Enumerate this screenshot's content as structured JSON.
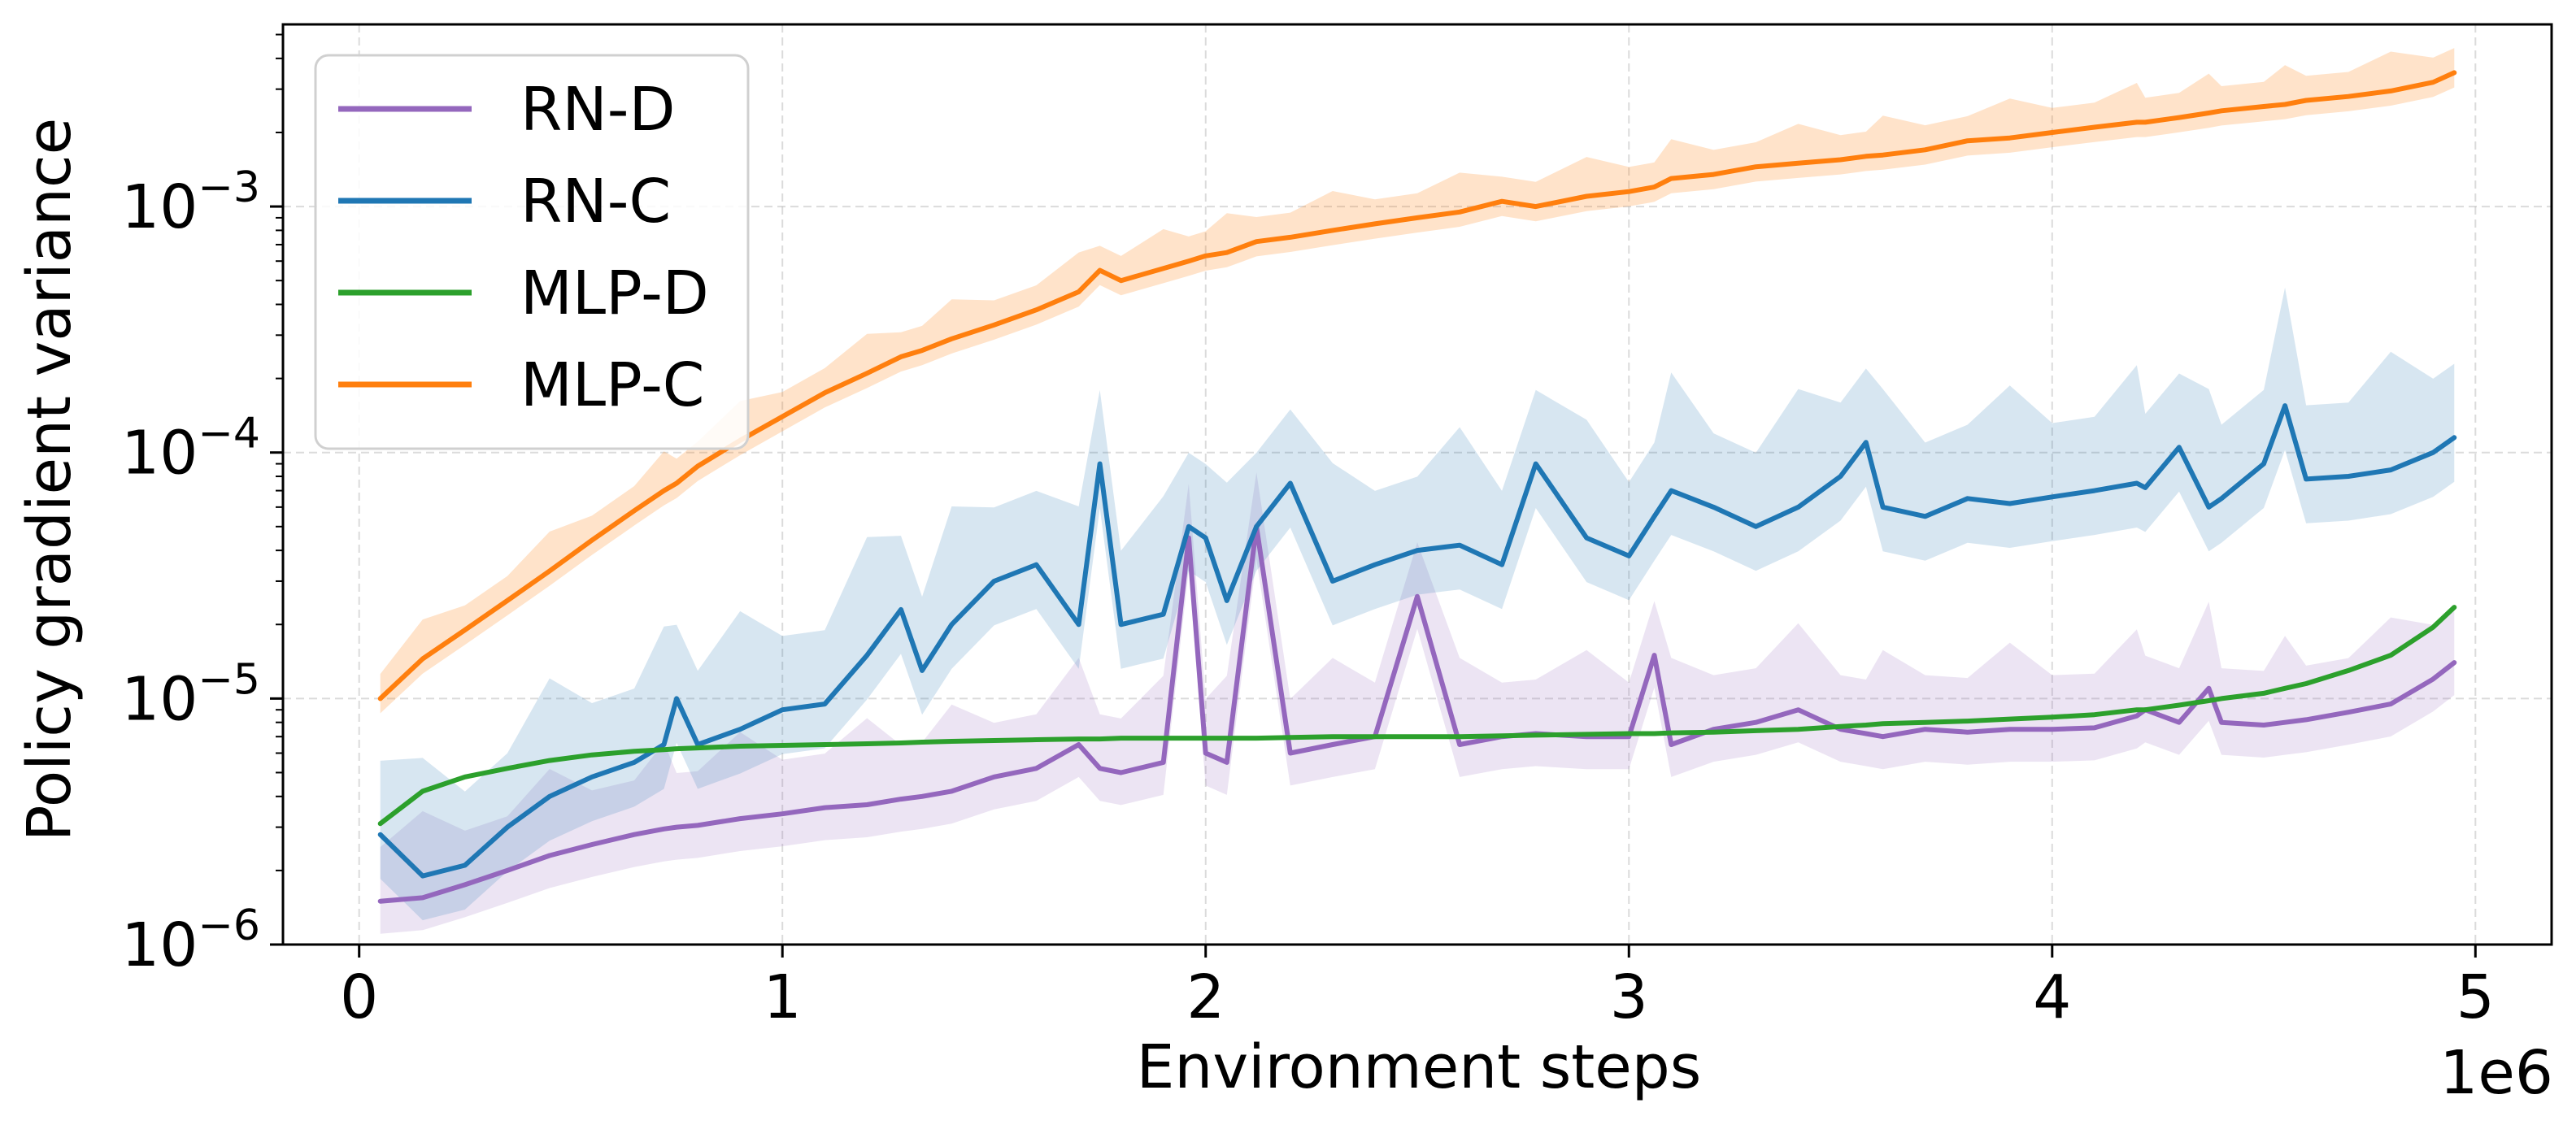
{
  "chart_data": {
    "type": "line",
    "xlabel": "Environment steps",
    "ylabel": "Policy gradient variance",
    "x_offset_label": "1e6",
    "xlim": [
      -0.18,
      5.18
    ],
    "ylim": [
      1e-06,
      0.0055
    ],
    "yscale": "log",
    "grid": true,
    "legend_position": "top-left",
    "x_ticks": [
      0,
      1,
      2,
      3,
      4,
      5
    ],
    "x_tick_labels": [
      "0",
      "1",
      "2",
      "3",
      "4",
      "5"
    ],
    "y_ticks": [
      1e-06,
      1e-05,
      0.0001,
      0.001
    ],
    "y_tick_labels": [
      {
        "base": "10",
        "exp": "−6"
      },
      {
        "base": "10",
        "exp": "−5"
      },
      {
        "base": "10",
        "exp": "−4"
      },
      {
        "base": "10",
        "exp": "−3"
      }
    ],
    "x": [
      0.05,
      0.15,
      0.25,
      0.35,
      0.45,
      0.55,
      0.65,
      0.72,
      0.75,
      0.8,
      0.9,
      1.0,
      1.1,
      1.2,
      1.28,
      1.33,
      1.4,
      1.5,
      1.6,
      1.7,
      1.75,
      1.8,
      1.9,
      1.96,
      2.0,
      2.05,
      2.12,
      2.2,
      2.3,
      2.4,
      2.5,
      2.6,
      2.7,
      2.78,
      2.9,
      3.0,
      3.06,
      3.1,
      3.2,
      3.3,
      3.4,
      3.5,
      3.56,
      3.6,
      3.7,
      3.8,
      3.9,
      4.0,
      4.1,
      4.2,
      4.22,
      4.3,
      4.37,
      4.4,
      4.5,
      4.55,
      4.6,
      4.7,
      4.8,
      4.9,
      4.95
    ],
    "series": [
      {
        "name": "RN-D",
        "color": "#9467bd",
        "values": [
          1.5e-06,
          1.55e-06,
          1.75e-06,
          2e-06,
          2.3e-06,
          2.55e-06,
          2.8e-06,
          2.95e-06,
          3e-06,
          3.05e-06,
          3.25e-06,
          3.4e-06,
          3.6e-06,
          3.7e-06,
          3.9e-06,
          4e-06,
          4.2e-06,
          4.8e-06,
          5.2e-06,
          6.5e-06,
          5.2e-06,
          5e-06,
          5.5e-06,
          4.5e-05,
          6e-06,
          5.5e-06,
          5e-05,
          6e-06,
          6.5e-06,
          7e-06,
          2.6e-05,
          6.5e-06,
          7e-06,
          7.2e-06,
          7e-06,
          7e-06,
          1.5e-05,
          6.5e-06,
          7.5e-06,
          8e-06,
          9e-06,
          7.5e-06,
          7.2e-06,
          7e-06,
          7.5e-06,
          7.3e-06,
          7.5e-06,
          7.5e-06,
          7.6e-06,
          8.5e-06,
          9e-06,
          8e-06,
          1.1e-05,
          8e-06,
          7.8e-06,
          8e-06,
          8.2e-06,
          8.8e-06,
          9.5e-06,
          1.2e-05,
          1.4e-05
        ]
      },
      {
        "name": "RN-C",
        "color": "#1f77b4",
        "values": [
          2.8e-06,
          1.9e-06,
          2.1e-06,
          3e-06,
          4e-06,
          4.8e-06,
          5.5e-06,
          6.5e-06,
          1e-05,
          6.5e-06,
          7.5e-06,
          9e-06,
          9.5e-06,
          1.5e-05,
          2.3e-05,
          1.3e-05,
          2e-05,
          3e-05,
          3.5e-05,
          2e-05,
          9e-05,
          2e-05,
          2.2e-05,
          5e-05,
          4.5e-05,
          2.5e-05,
          5e-05,
          7.5e-05,
          3e-05,
          3.5e-05,
          4e-05,
          4.2e-05,
          3.5e-05,
          9e-05,
          4.5e-05,
          3.8e-05,
          5.5e-05,
          7e-05,
          6e-05,
          5e-05,
          6e-05,
          8e-05,
          0.00011,
          6e-05,
          5.5e-05,
          6.5e-05,
          6.2e-05,
          6.6e-05,
          7e-05,
          7.5e-05,
          7.2e-05,
          0.000105,
          6e-05,
          6.5e-05,
          9e-05,
          0.000155,
          7.8e-05,
          8e-05,
          8.5e-05,
          0.0001,
          0.000115
        ]
      },
      {
        "name": "MLP-D",
        "color": "#2ca02c",
        "values": [
          3.1e-06,
          4.2e-06,
          4.8e-06,
          5.2e-06,
          5.6e-06,
          5.9e-06,
          6.1e-06,
          6.2e-06,
          6.25e-06,
          6.3e-06,
          6.4e-06,
          6.45e-06,
          6.5e-06,
          6.55e-06,
          6.6e-06,
          6.65e-06,
          6.7e-06,
          6.75e-06,
          6.8e-06,
          6.85e-06,
          6.85e-06,
          6.9e-06,
          6.9e-06,
          6.9e-06,
          6.9e-06,
          6.9e-06,
          6.9e-06,
          6.95e-06,
          7e-06,
          7e-06,
          7e-06,
          7e-06,
          7.05e-06,
          7.1e-06,
          7.15e-06,
          7.2e-06,
          7.2e-06,
          7.25e-06,
          7.3e-06,
          7.4e-06,
          7.5e-06,
          7.7e-06,
          7.8e-06,
          7.9e-06,
          8e-06,
          8.1e-06,
          8.25e-06,
          8.4e-06,
          8.6e-06,
          9e-06,
          9e-06,
          9.4e-06,
          9.8e-06,
          1e-05,
          1.05e-05,
          1.1e-05,
          1.15e-05,
          1.3e-05,
          1.5e-05,
          1.95e-05,
          2.35e-05
        ]
      },
      {
        "name": "MLP-C",
        "color": "#ff7f0e",
        "values": [
          1e-05,
          1.45e-05,
          1.9e-05,
          2.5e-05,
          3.3e-05,
          4.4e-05,
          5.8e-05,
          7e-05,
          7.5e-05,
          8.8e-05,
          0.000112,
          0.00014,
          0.000175,
          0.00021,
          0.000245,
          0.00026,
          0.00029,
          0.00033,
          0.00038,
          0.00045,
          0.00055,
          0.0005,
          0.00056,
          0.0006,
          0.00063,
          0.00065,
          0.00072,
          0.00075,
          0.0008,
          0.00085,
          0.0009,
          0.00095,
          0.00105,
          0.001,
          0.0011,
          0.00115,
          0.0012,
          0.0013,
          0.00135,
          0.00145,
          0.0015,
          0.00155,
          0.0016,
          0.00162,
          0.0017,
          0.00185,
          0.0019,
          0.002,
          0.0021,
          0.0022,
          0.0022,
          0.0023,
          0.0024,
          0.00245,
          0.00255,
          0.0026,
          0.0027,
          0.0028,
          0.00295,
          0.0032,
          0.0035
        ]
      }
    ]
  }
}
